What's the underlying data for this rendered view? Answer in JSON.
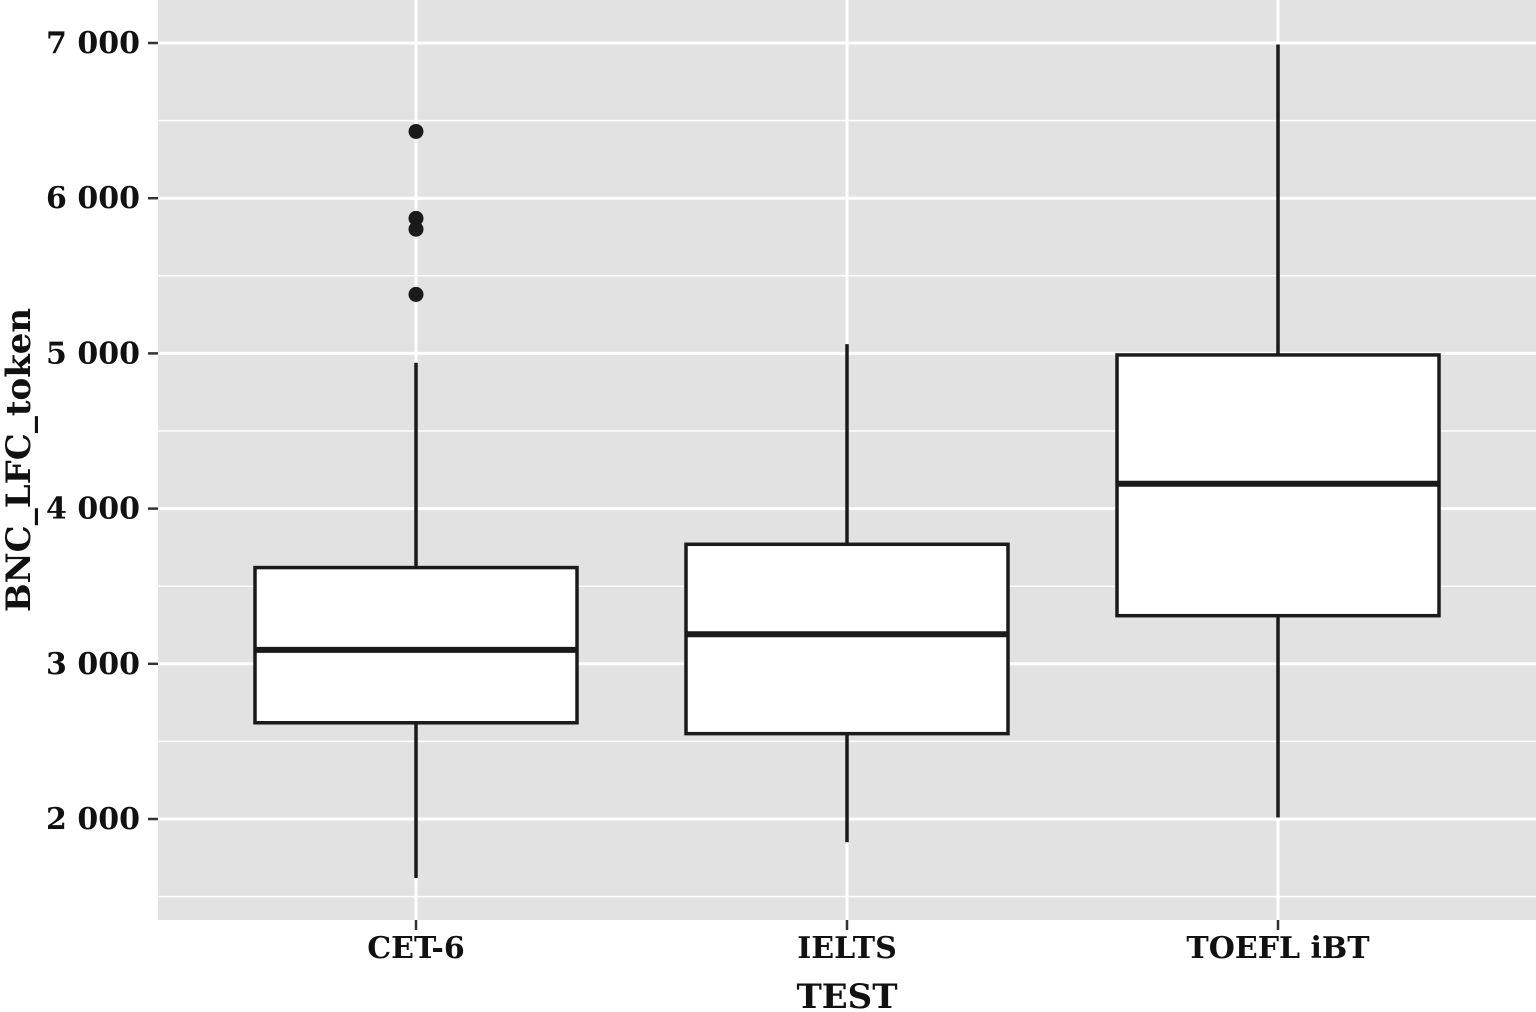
{
  "chart_data": {
    "type": "boxplot",
    "title": "",
    "xlabel": "TEST",
    "ylabel": "BNC_LFC_token",
    "categories": [
      "CET-6",
      "IELTS",
      "TOEFL iBT"
    ],
    "ylim": [
      1350,
      7250
    ],
    "yticks": [
      2000,
      3000,
      4000,
      5000,
      6000,
      7000
    ],
    "ytick_labels": [
      "2 000",
      "3 000",
      "4 000",
      "5 000",
      "6 000",
      "7 000"
    ],
    "grid": true,
    "colors": {
      "panel_background": "#e2e2e2",
      "grid": "#ffffff",
      "box_fill": "#ffffff",
      "box_stroke": "#1a1a1a",
      "outlier": "#1a1a1a"
    },
    "boxes": [
      {
        "category": "CET-6",
        "whisker_low": 1620,
        "q1": 2620,
        "median": 3090,
        "q3": 3620,
        "whisker_high": 4940,
        "outliers": [
          5380,
          5800,
          5870,
          6430
        ]
      },
      {
        "category": "IELTS",
        "whisker_low": 1850,
        "q1": 2550,
        "median": 3190,
        "q3": 3770,
        "whisker_high": 5060,
        "outliers": []
      },
      {
        "category": "TOEFL iBT",
        "whisker_low": 2010,
        "q1": 3310,
        "median": 4160,
        "q3": 4990,
        "whisker_high": 6990,
        "outliers": []
      }
    ]
  }
}
